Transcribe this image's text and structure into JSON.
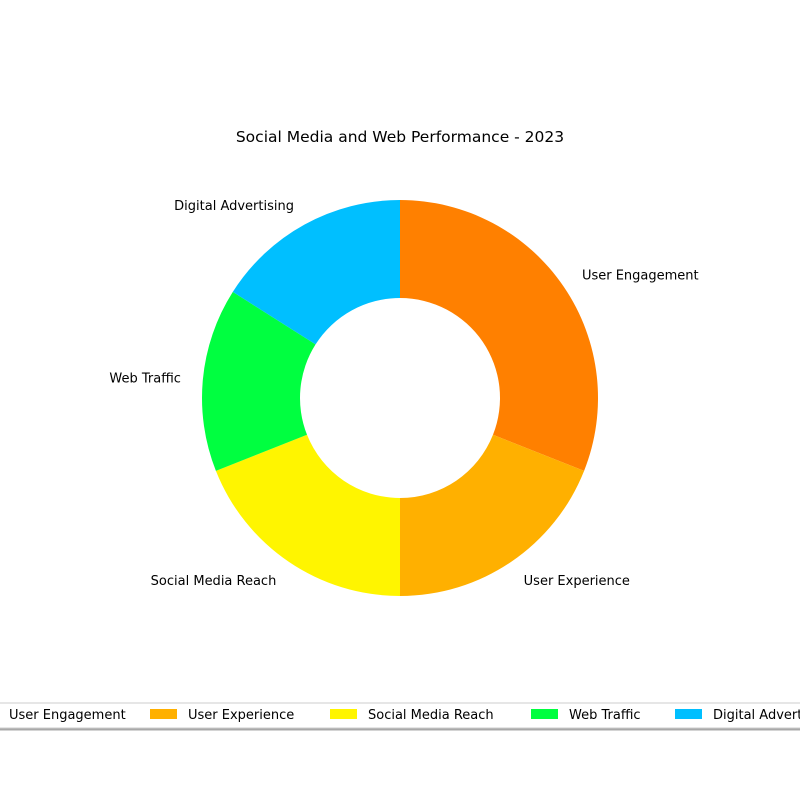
{
  "chart_data": {
    "type": "pie",
    "variant": "donut",
    "title": "Social Media and Web Performance - 2023",
    "categories": [
      "User Engagement",
      "User Experience",
      "Social Media Reach",
      "Web Traffic",
      "Digital Advertising"
    ],
    "values": [
      31,
      19,
      19,
      15,
      16
    ],
    "colors": [
      "#FF8000",
      "#FFB000",
      "#FFF500",
      "#00FF40",
      "#00BFFF"
    ],
    "start": "top, clockwise",
    "legend": {
      "placement": "bottom",
      "labels": [
        "User Engagement",
        "User Experience",
        "Social Media Reach",
        "Web Traffic",
        "Digital Advertising"
      ]
    }
  }
}
